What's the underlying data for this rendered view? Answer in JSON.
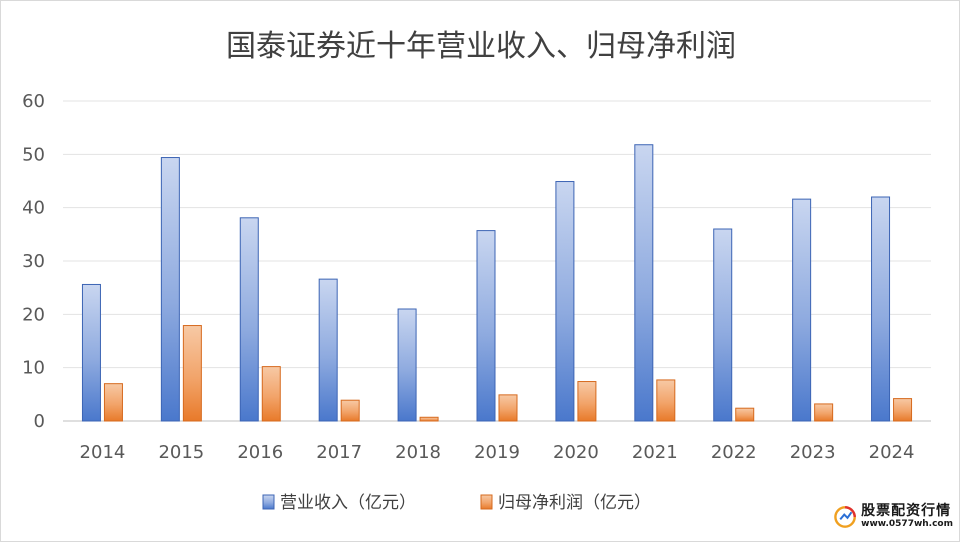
{
  "chart_data": {
    "type": "bar",
    "title": "国泰证券近十年营业收入、归母净利润",
    "categories": [
      "2014",
      "2015",
      "2016",
      "2017",
      "2018",
      "2019",
      "2020",
      "2021",
      "2022",
      "2023",
      "2024"
    ],
    "series": [
      {
        "name": "营业收入（亿元）",
        "values": [
          25.6,
          49.4,
          38.1,
          26.6,
          21.0,
          35.7,
          44.9,
          51.8,
          36.0,
          41.6,
          42.0
        ],
        "color": "#4472c4"
      },
      {
        "name": "归母净利润（亿元）",
        "values": [
          7.0,
          17.9,
          10.2,
          3.9,
          0.7,
          4.9,
          7.4,
          7.7,
          2.4,
          3.2,
          4.2
        ],
        "color": "#ed7d31"
      }
    ],
    "yticks": [
      0,
      10,
      20,
      30,
      40,
      50,
      60
    ],
    "ylim": [
      0,
      60
    ],
    "xlabel": "",
    "ylabel": "",
    "grid": true,
    "legend": "bottom"
  },
  "watermark": {
    "name": "股票配资行情",
    "url": "www.0577wh.com"
  }
}
